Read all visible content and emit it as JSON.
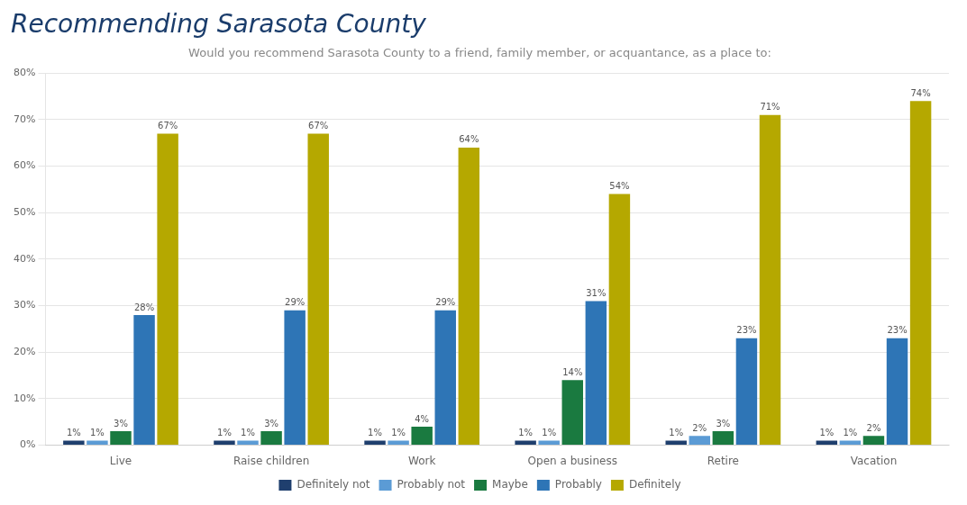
{
  "chart_data": {
    "type": "bar",
    "title": "Recommending Sarasota County",
    "subtitle": "Would you recommend Sarasota County to a friend, family member, or acquantance, as a place to:",
    "categories": [
      "Live",
      "Raise children",
      "Work",
      "Open a business",
      "Retire",
      "Vacation"
    ],
    "series": [
      {
        "name": "Definitely not",
        "color": "#1f3f6e",
        "values": [
          1,
          1,
          1,
          1,
          1,
          1
        ],
        "value_labels": [
          "1%",
          "1%",
          "1%",
          "1%",
          "1%",
          "1%"
        ]
      },
      {
        "name": "Probably not",
        "color": "#5b9bd5",
        "values": [
          1,
          1,
          1,
          1,
          2,
          1
        ],
        "value_labels": [
          "1%",
          "1%",
          "1%",
          "1%",
          "2%",
          "1%"
        ]
      },
      {
        "name": "Maybe",
        "color": "#1a7a40",
        "values": [
          3,
          3,
          4,
          14,
          3,
          2
        ],
        "value_labels": [
          "3%",
          "3%",
          "4%",
          "14%",
          "3%",
          "2%"
        ]
      },
      {
        "name": "Probably",
        "color": "#2e75b6",
        "values": [
          28,
          29,
          29,
          31,
          23,
          23
        ],
        "value_labels": [
          "28%",
          "29%",
          "29%",
          "31%",
          "23%",
          "23%"
        ]
      },
      {
        "name": "Definitely",
        "color": "#b5a800",
        "values": [
          67,
          67,
          64,
          54,
          71,
          74
        ],
        "value_labels": [
          "67%",
          "67%",
          "64%",
          "54%",
          "71%",
          "74%"
        ]
      }
    ],
    "ylim": [
      0,
      80
    ],
    "yticks": [
      {
        "value": 0,
        "label": "0%"
      },
      {
        "value": 10,
        "label": "10%"
      },
      {
        "value": 20,
        "label": "20%"
      },
      {
        "value": 30,
        "label": "30%"
      },
      {
        "value": 40,
        "label": "40%"
      },
      {
        "value": 50,
        "label": "50%"
      },
      {
        "value": 60,
        "label": "60%"
      },
      {
        "value": 70,
        "label": "70%"
      },
      {
        "value": 80,
        "label": "80%"
      }
    ],
    "grid": true,
    "legend": "bottom",
    "data_labels": true
  }
}
